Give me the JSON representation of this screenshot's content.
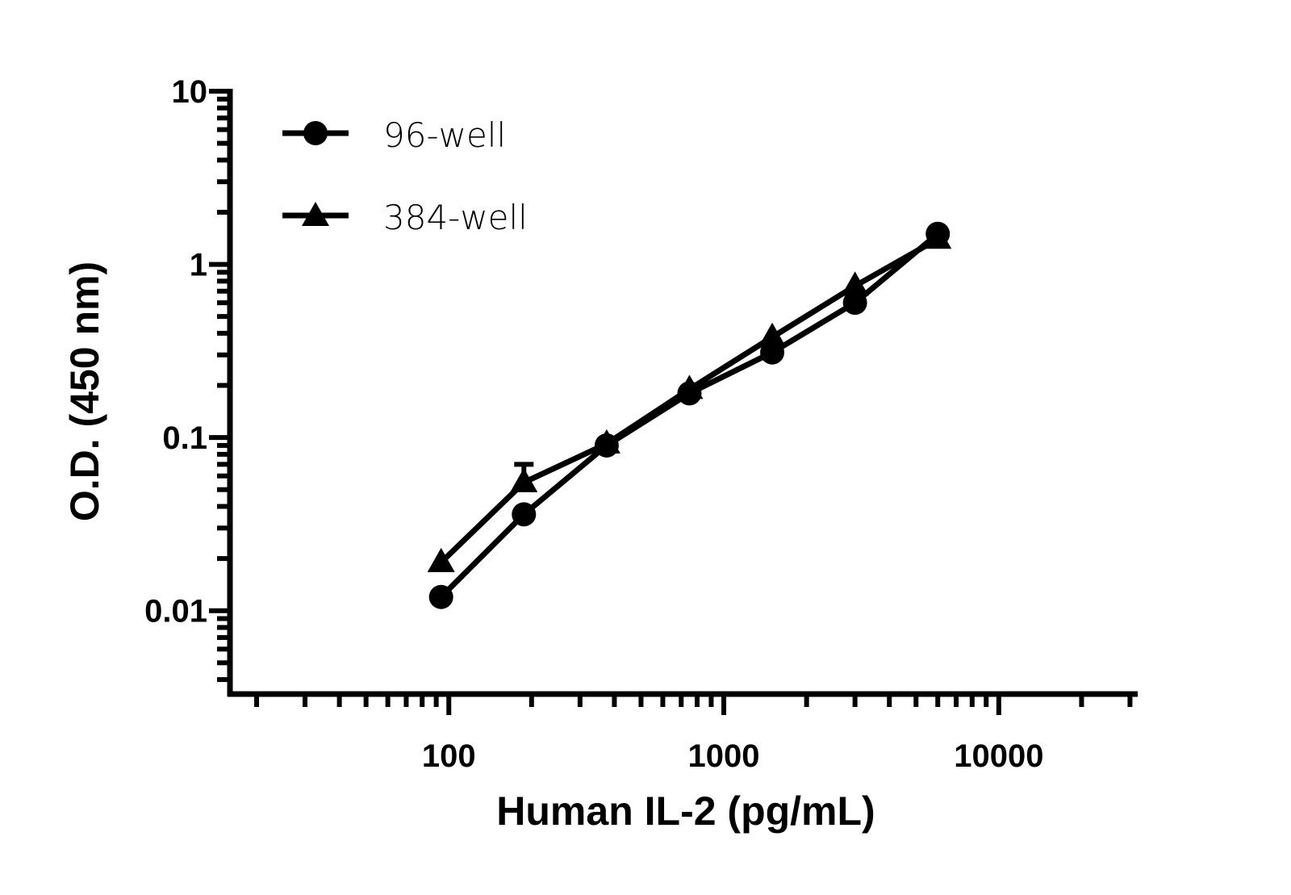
{
  "chart_data": {
    "type": "scatter",
    "title": "",
    "xlabel": "Human IL-2 (pg/mL)",
    "ylabel": "O.D. (450 nm)",
    "xscale": "log",
    "yscale": "log",
    "xlim": [
      16,
      32000
    ],
    "ylim": [
      0.0033,
      10
    ],
    "xticks": [
      100,
      1000,
      10000
    ],
    "xtick_labels": [
      "100",
      "1000",
      "10000"
    ],
    "yticks": [
      0.01,
      0.1,
      1,
      10
    ],
    "ytick_labels": [
      "0.01",
      "0.1",
      "1",
      "10"
    ],
    "grid": false,
    "legend_position": "top-left",
    "color": "#000000",
    "series": [
      {
        "name": "96-well",
        "marker": "circle",
        "x": [
          93.75,
          187.5,
          375,
          750,
          1500,
          3000,
          6000
        ],
        "y": [
          0.012,
          0.036,
          0.09,
          0.18,
          0.31,
          0.6,
          1.5
        ]
      },
      {
        "name": "384-well",
        "marker": "triangle",
        "x": [
          93.75,
          187.5,
          375,
          750,
          1500,
          3000,
          6000
        ],
        "y": [
          0.019,
          0.055,
          0.092,
          0.19,
          0.38,
          0.75,
          1.4
        ],
        "error_upper": [
          null,
          0.07,
          null,
          null,
          null,
          null,
          null
        ]
      }
    ]
  }
}
